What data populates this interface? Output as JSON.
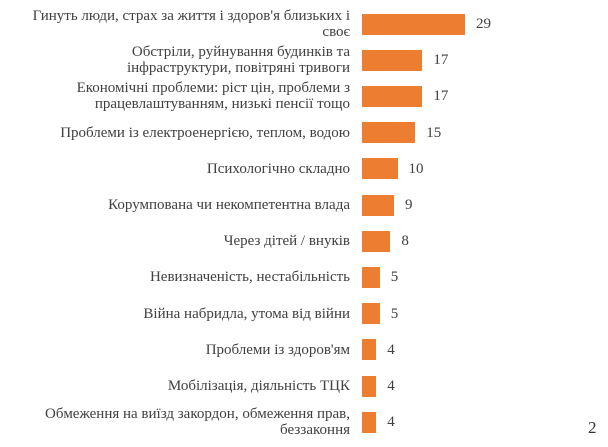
{
  "chart_data": {
    "type": "bar",
    "orientation": "horizontal",
    "bar_color": "#ED7D31",
    "text_color": "#404040",
    "xlim": [
      0,
      29
    ],
    "categories": [
      "Гинуть люди, страх за життя і здоров'я близьких і своє",
      "Обстріли, руйнування будинків та інфраструктури, повітряні тривоги",
      "Економічні проблеми: ріст цін, проблеми з працевлаштуванням, низькі пенсії тощо",
      "Проблеми із електроенергією, теплом, водою",
      "Психологічно складно",
      "Корумпована чи некомпетентна влада",
      "Через дітей / внуків",
      "Невизначеність, нестабільність",
      "Війна набридла, утома від війни",
      "Проблеми із здоров'ям",
      "Мобілізація, діяльність ТЦК",
      "Обмеження на виїзд закордон, обмеження прав, беззаконня"
    ],
    "category_lines": [
      [
        "Гинуть люди, страх за життя і здоров'я близьких і",
        "своє"
      ],
      [
        "Обстріли, руйнування будинків та",
        "інфраструктури, повітряні тривоги"
      ],
      [
        "Економічні проблеми: ріст цін, проблеми з",
        "працевлаштуванням, низькі пенсії тощо"
      ],
      [
        "Проблеми із електроенергією, теплом, водою"
      ],
      [
        "Психологічно складно"
      ],
      [
        "Корумпована чи некомпетентна влада"
      ],
      [
        "Через дітей / внуків"
      ],
      [
        "Невизначеність, нестабільність"
      ],
      [
        "Війна набридла, утома від війни"
      ],
      [
        "Проблеми із здоров'ям"
      ],
      [
        "Мобілізація, діяльність ТЦК"
      ],
      [
        "Обмеження на виїзд закордон, обмеження прав,",
        "беззаконня"
      ]
    ],
    "values": [
      29,
      17,
      17,
      15,
      10,
      9,
      8,
      5,
      5,
      4,
      4,
      4
    ]
  },
  "overlay": {
    "page_number": "2"
  }
}
